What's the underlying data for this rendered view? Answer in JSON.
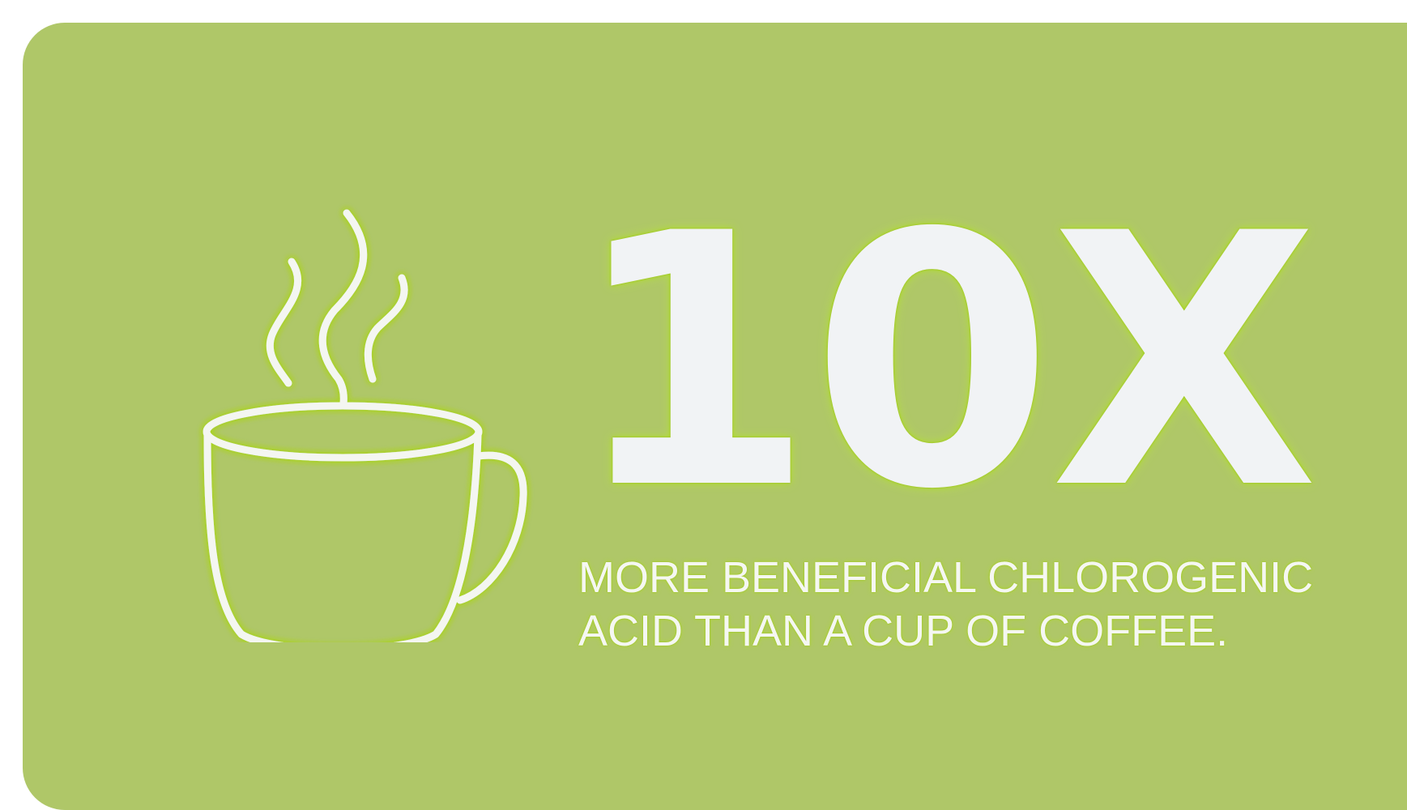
{
  "stat": {
    "value": "10X",
    "caption_line1": "MORE BENEFICIAL CHLOROGENIC",
    "caption_line2": "ACID THAN A CUP OF COFFEE."
  },
  "icon": {
    "name": "coffee-cup-icon"
  },
  "colors": {
    "background": "#afc768",
    "text": "#f1f3f5",
    "glow": "#a7d21f"
  }
}
